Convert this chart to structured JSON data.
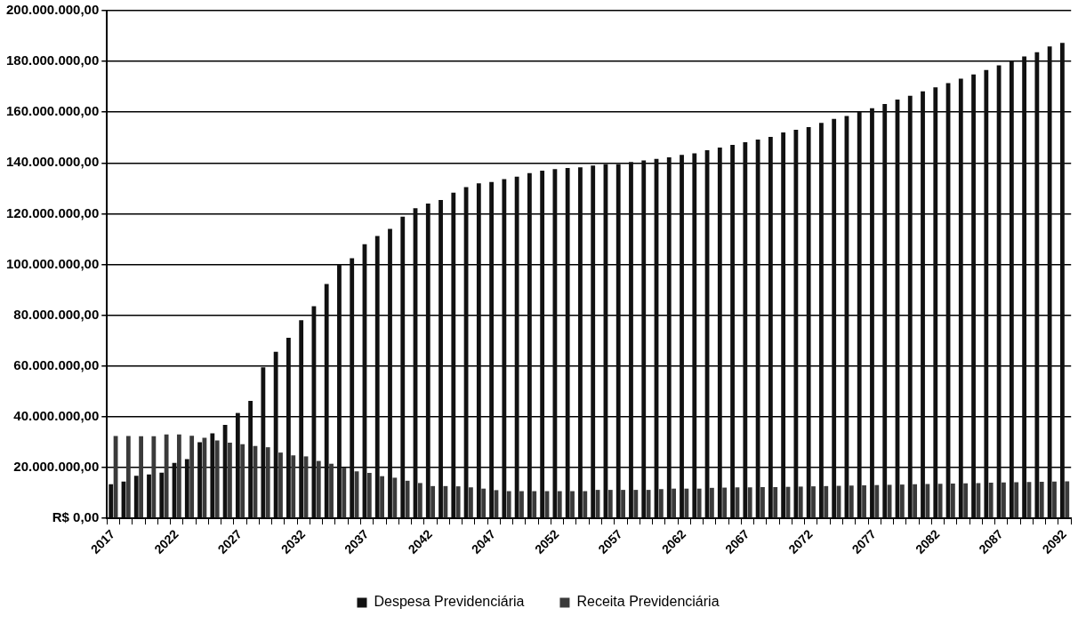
{
  "chart_data": {
    "type": "bar",
    "categories": [
      "2017",
      null,
      null,
      null,
      null,
      "2022",
      null,
      null,
      null,
      null,
      "2027",
      null,
      null,
      null,
      null,
      "2032",
      null,
      null,
      null,
      null,
      "2037",
      null,
      null,
      null,
      null,
      "2042",
      null,
      null,
      null,
      null,
      "2047",
      null,
      null,
      null,
      null,
      "2052",
      null,
      null,
      null,
      null,
      "2057",
      null,
      null,
      null,
      null,
      "2062",
      null,
      null,
      null,
      null,
      "2067",
      null,
      null,
      null,
      null,
      "2072",
      null,
      null,
      null,
      null,
      "2077",
      null,
      null,
      null,
      null,
      "2082",
      null,
      null,
      null,
      null,
      "2087",
      null,
      null,
      null,
      null,
      "2092"
    ],
    "series": [
      {
        "name": "Despesa Previdenciária",
        "color": "#111111",
        "values": [
          13400000,
          14500000,
          16800000,
          17300000,
          18000000,
          21800000,
          23300000,
          30000000,
          33500000,
          36800000,
          41500000,
          46300000,
          59500000,
          65600000,
          71100000,
          78000000,
          83600000,
          92300000,
          100000000,
          102500000,
          108000000,
          111200000,
          114000000,
          118800000,
          122200000,
          124000000,
          125400000,
          128300000,
          130500000,
          132000000,
          132500000,
          133600000,
          134600000,
          136000000,
          137000000,
          137600000,
          138000000,
          138300000,
          139000000,
          139500000,
          139500000,
          140400000,
          141000000,
          141600000,
          142200000,
          143200000,
          143800000,
          145000000,
          146100000,
          147100000,
          148200000,
          149200000,
          150300000,
          152000000,
          153100000,
          154100000,
          155800000,
          157400000,
          158500000,
          160100000,
          161600000,
          163200000,
          165000000,
          166500000,
          168200000,
          169800000,
          171500000,
          173200000,
          174900000,
          176600000,
          178500000,
          180200000,
          182000000,
          183600000,
          185900000,
          187300000
        ]
      },
      {
        "name": "Receita Previdenciária",
        "color": "#3a3a3a",
        "values": [
          32400000,
          32400000,
          32300000,
          32300000,
          33000000,
          33000000,
          32500000,
          31700000,
          30700000,
          29800000,
          29200000,
          28500000,
          28000000,
          25900000,
          24800000,
          24400000,
          22600000,
          21500000,
          20000000,
          18500000,
          17900000,
          16600000,
          16000000,
          14800000,
          13900000,
          12700000,
          12700000,
          12600000,
          12200000,
          11700000,
          11100000,
          10700000,
          10700000,
          10700000,
          10700000,
          10700000,
          10700000,
          10700000,
          11200000,
          11200000,
          11200000,
          11200000,
          11200000,
          11500000,
          11700000,
          11700000,
          11700000,
          12000000,
          12100000,
          12200000,
          12200000,
          12300000,
          12300000,
          12400000,
          12500000,
          12600000,
          12700000,
          12800000,
          12900000,
          13000000,
          13100000,
          13200000,
          13300000,
          13400000,
          13500000,
          13600000,
          13700000,
          13800000,
          13900000,
          14000000,
          14100000,
          14200000,
          14300000,
          14400000,
          14500000,
          14600000
        ]
      }
    ],
    "ylim": [
      0,
      200000000
    ],
    "yticks": [
      {
        "value": 0,
        "label": "R$ 0,00"
      },
      {
        "value": 20000000,
        "label": "20.000.000,00"
      },
      {
        "value": 40000000,
        "label": "40.000.000,00"
      },
      {
        "value": 60000000,
        "label": "60.000.000,00"
      },
      {
        "value": 80000000,
        "label": "80.000.000,00"
      },
      {
        "value": 100000000,
        "label": "100.000.000,00"
      },
      {
        "value": 120000000,
        "label": "120.000.000,00"
      },
      {
        "value": 140000000,
        "label": "140.000.000,00"
      },
      {
        "value": 160000000,
        "label": "160.000.000,00"
      },
      {
        "value": 180000000,
        "label": "180.000.000,00"
      },
      {
        "value": 200000000,
        "label": "200.000.000,00"
      }
    ],
    "grid": "y",
    "legend": "bottom"
  }
}
